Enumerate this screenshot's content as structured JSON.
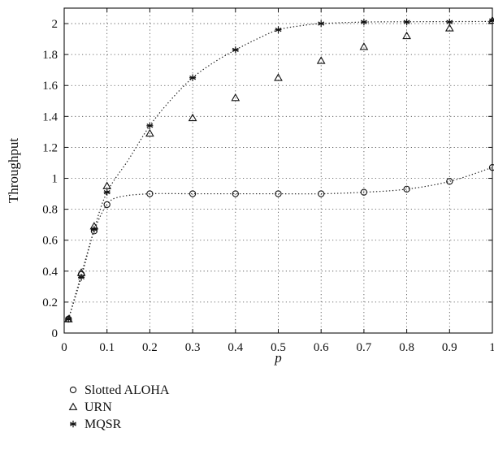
{
  "chart_data": {
    "type": "scatter",
    "xlabel": "p",
    "ylabel": "Throughput",
    "xlim": [
      0,
      1
    ],
    "ylim": [
      0,
      2.1
    ],
    "x_ticks": [
      "0",
      "0.1",
      "0.2",
      "0.3",
      "0.4",
      "0.5",
      "0.6",
      "0.7",
      "0.8",
      "0.9",
      "1"
    ],
    "y_ticks": [
      "0",
      "0.2",
      "0.4",
      "0.6",
      "0.8",
      "1",
      "1.2",
      "1.4",
      "1.6",
      "1.8",
      "2"
    ],
    "grid": true,
    "legend_position": "below",
    "series": [
      {
        "name": "Slotted ALOHA",
        "marker": "circle",
        "points": [
          [
            0.01,
            0.09
          ],
          [
            0.04,
            0.38
          ],
          [
            0.07,
            0.66
          ],
          [
            0.1,
            0.83
          ],
          [
            0.2,
            0.9
          ],
          [
            0.3,
            0.9
          ],
          [
            0.4,
            0.9
          ],
          [
            0.5,
            0.9
          ],
          [
            0.6,
            0.9
          ],
          [
            0.7,
            0.91
          ],
          [
            0.8,
            0.93
          ],
          [
            0.9,
            0.98
          ],
          [
            1.0,
            1.07
          ]
        ],
        "fit": [
          [
            0.01,
            0.09
          ],
          [
            0.04,
            0.38
          ],
          [
            0.07,
            0.66
          ],
          [
            0.1,
            0.83
          ],
          [
            0.13,
            0.88
          ],
          [
            0.2,
            0.9
          ],
          [
            0.3,
            0.9
          ],
          [
            0.4,
            0.9
          ],
          [
            0.5,
            0.9
          ],
          [
            0.6,
            0.9
          ],
          [
            0.7,
            0.91
          ],
          [
            0.8,
            0.93
          ],
          [
            0.9,
            0.98
          ],
          [
            1.0,
            1.07
          ]
        ]
      },
      {
        "name": "URN",
        "marker": "triangle",
        "points": [
          [
            0.01,
            0.09
          ],
          [
            0.04,
            0.39
          ],
          [
            0.07,
            0.69
          ],
          [
            0.1,
            0.95
          ],
          [
            0.2,
            1.29
          ],
          [
            0.3,
            1.39
          ],
          [
            0.4,
            1.52
          ],
          [
            0.5,
            1.65
          ],
          [
            0.6,
            1.76
          ],
          [
            0.7,
            1.85
          ],
          [
            0.8,
            1.92
          ],
          [
            0.9,
            1.97
          ],
          [
            1.0,
            2.02
          ]
        ]
      },
      {
        "name": "MQSR",
        "marker": "star",
        "points": [
          [
            0.01,
            0.09
          ],
          [
            0.04,
            0.36
          ],
          [
            0.07,
            0.67
          ],
          [
            0.1,
            0.91
          ],
          [
            0.2,
            1.34
          ],
          [
            0.3,
            1.65
          ],
          [
            0.4,
            1.83
          ],
          [
            0.5,
            1.96
          ],
          [
            0.6,
            2.0
          ],
          [
            0.7,
            2.01
          ],
          [
            0.8,
            2.01
          ],
          [
            0.9,
            2.01
          ],
          [
            1.0,
            2.02
          ]
        ],
        "fit": [
          [
            0.01,
            0.09
          ],
          [
            0.04,
            0.36
          ],
          [
            0.07,
            0.67
          ],
          [
            0.1,
            0.91
          ],
          [
            0.15,
            1.12
          ],
          [
            0.2,
            1.34
          ],
          [
            0.25,
            1.51
          ],
          [
            0.3,
            1.65
          ],
          [
            0.35,
            1.75
          ],
          [
            0.4,
            1.83
          ],
          [
            0.45,
            1.9
          ],
          [
            0.5,
            1.96
          ],
          [
            0.55,
            1.985
          ],
          [
            0.6,
            2.0
          ],
          [
            0.7,
            2.01
          ],
          [
            0.8,
            2.012
          ],
          [
            0.9,
            2.013
          ],
          [
            1.0,
            2.014
          ]
        ]
      }
    ]
  }
}
